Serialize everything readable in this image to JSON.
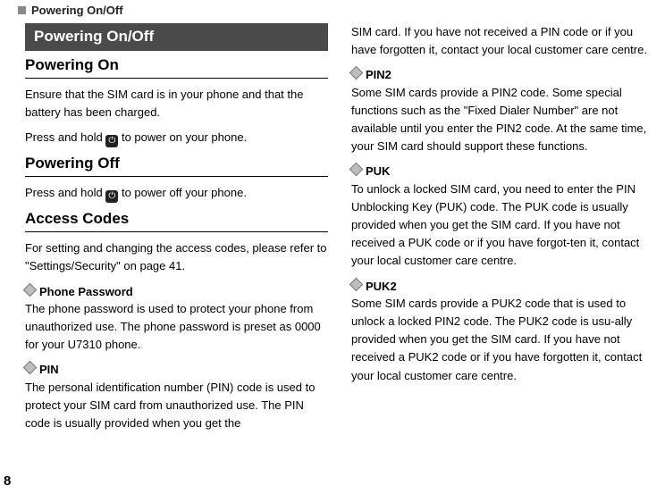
{
  "runningHead": "Powering On/Off",
  "pageNumber": "8",
  "leftColumn": {
    "barTitle": "Powering On/Off",
    "section1": {
      "heading": "Powering On",
      "p1": "Ensure that the SIM card is in your phone and that the battery has been charged.",
      "line_a": "Press and hold ",
      "line_b": " to power on your phone."
    },
    "section2": {
      "heading": "Powering Off",
      "line_a": "Press and hold ",
      "line_b": " to power off your phone."
    },
    "section3": {
      "heading": "Access Codes",
      "p1": "For setting and changing the access codes, please refer to \"Settings/Security\" on page 41."
    },
    "sub1": {
      "label": "Phone Password",
      "body": "The phone password is used to protect your phone from unauthorized use. The phone password is preset as 0000 for your U7310 phone."
    },
    "sub2": {
      "label": "PIN",
      "body": "The personal identification number (PIN) code is used to protect your SIM card from unauthorized use. The PIN code is usually provided when you get the"
    }
  },
  "rightColumn": {
    "continuation": "SIM card. If you have not received a PIN code or if you have forgotten it, contact your local customer care centre.",
    "sub1": {
      "label": "PIN2",
      "body": "Some SIM cards provide a PIN2 code. Some special functions such as the \"Fixed Dialer Number\" are not available until you enter the PIN2 code. At the same time, your SIM card should support these functions."
    },
    "sub2": {
      "label": "PUK",
      "body": "To unlock a locked SIM card, you need to enter the PIN Unblocking Key (PUK) code. The PUK code is usually provided when you get the SIM card. If you have not received a PUK code or if you have forgot-ten it, contact your local customer care centre."
    },
    "sub3": {
      "label": "PUK2",
      "body": "Some SIM cards provide a PUK2 code that is used to unlock a locked PIN2 code. The PUK2 code is usu-ally provided when you get the SIM card. If you have not received a PUK2 code or if you have forgotten it, contact your local customer care centre."
    }
  },
  "iconGlyph": "⏻"
}
